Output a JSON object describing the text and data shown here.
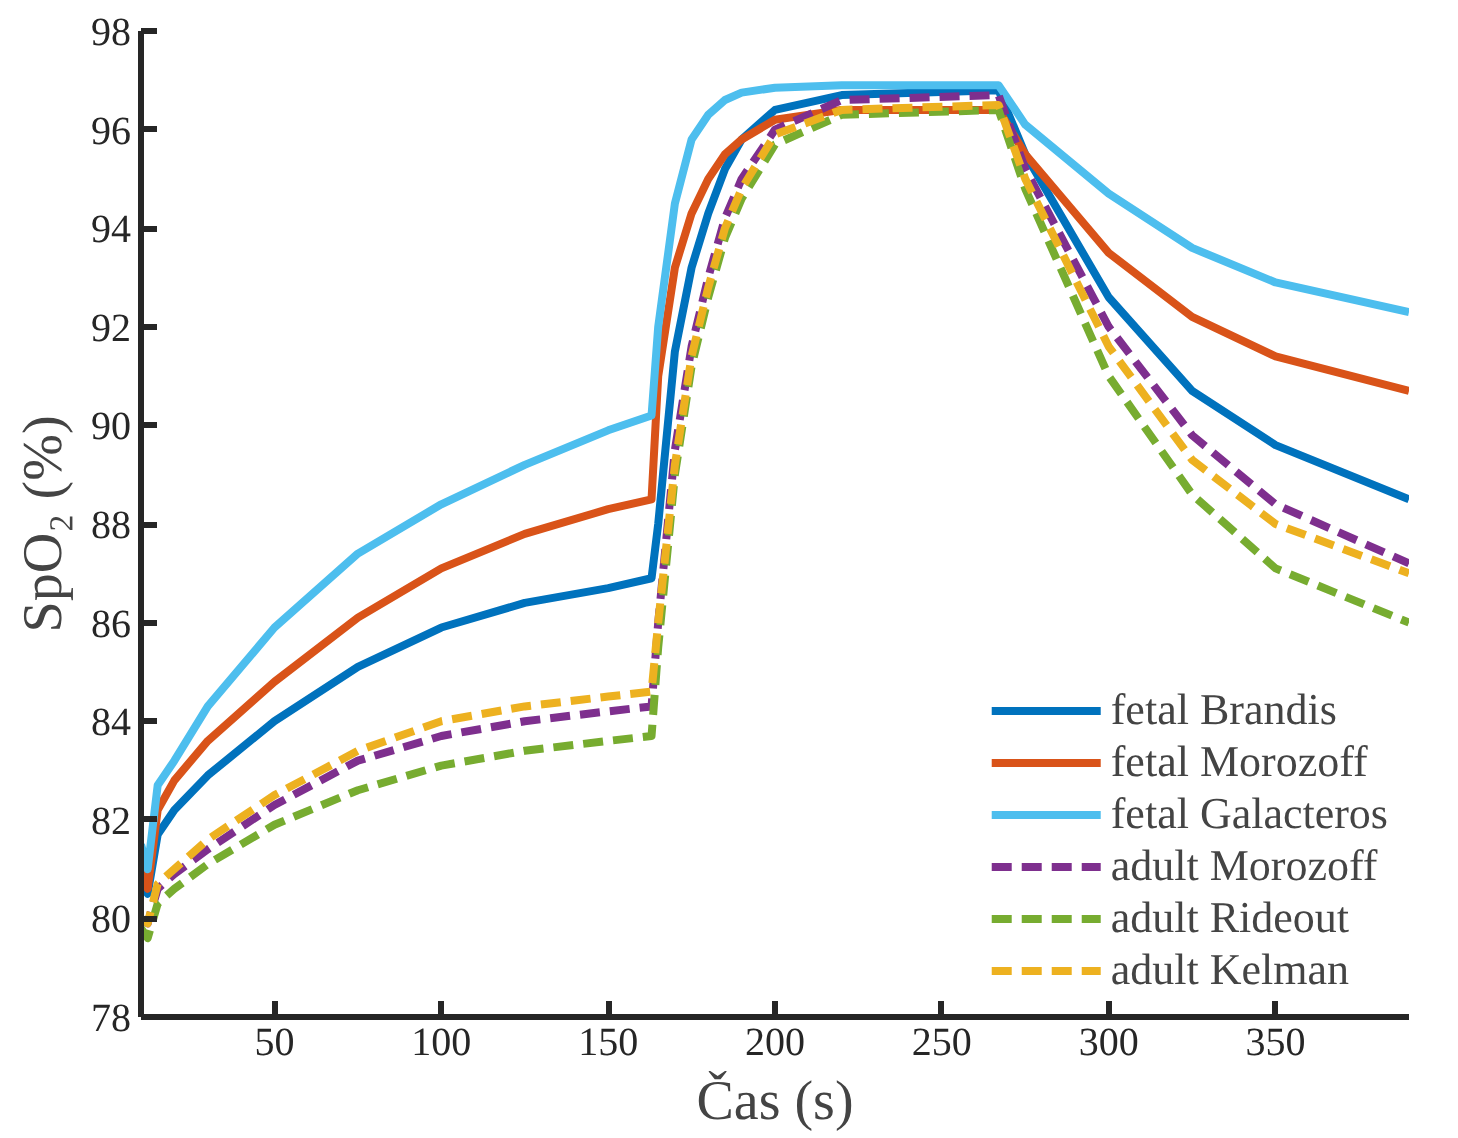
{
  "chart_data": {
    "type": "line",
    "xlabel": "Čas (s)",
    "ylabel": "SpO₂ (%)",
    "x": [
      10,
      12,
      15,
      20,
      30,
      50,
      75,
      100,
      125,
      150,
      163,
      165,
      170,
      175,
      180,
      185,
      190,
      200,
      220,
      267,
      275,
      300,
      325,
      350,
      390
    ],
    "xlim": [
      10,
      390
    ],
    "xticks": [
      50,
      100,
      150,
      200,
      250,
      300,
      350
    ],
    "ylim": [
      78,
      98
    ],
    "yticks": [
      78,
      80,
      82,
      84,
      86,
      88,
      90,
      92,
      94,
      96,
      98
    ],
    "grid": false,
    "legend": "bottom right",
    "marker": "none",
    "series": [
      {
        "name": "fetal Brandis",
        "color": "#0072bd",
        "line_style": "solid",
        "values": [
          80.7,
          80.5,
          81.7,
          82.2,
          82.9,
          84.0,
          85.1,
          85.9,
          86.4,
          86.7,
          86.9,
          88,
          91.5,
          93.2,
          94.3,
          95.2,
          95.8,
          96.4,
          96.7,
          96.8,
          95.5,
          92.6,
          90.7,
          89.6,
          88.5
        ]
      },
      {
        "name": "fetal Morozoff",
        "color": "#d95319",
        "line_style": "solid",
        "values": [
          81,
          80.6,
          82.2,
          82.8,
          83.6,
          84.8,
          86.1,
          87.1,
          87.8,
          88.3,
          88.5,
          91,
          93.2,
          94.3,
          95.0,
          95.5,
          95.8,
          96.2,
          96.4,
          96.4,
          95.5,
          93.5,
          92.2,
          91.4,
          90.7
        ]
      },
      {
        "name": "fetal Galacteros",
        "color": "#4dbeee",
        "line_style": "solid",
        "values": [
          81.5,
          81,
          82.7,
          83.2,
          84.3,
          85.9,
          87.4,
          88.4,
          89.2,
          89.9,
          90.2,
          92,
          94.5,
          95.8,
          96.3,
          96.6,
          96.75,
          96.85,
          96.9,
          96.9,
          96.1,
          94.7,
          93.6,
          92.9,
          92.3
        ]
      },
      {
        "name": "adult Morozoff",
        "color": "#7e2f8e",
        "line_style": "dashed",
        "values": [
          80,
          79.9,
          80.6,
          80.9,
          81.4,
          82.3,
          83.2,
          83.7,
          84.0,
          84.2,
          84.3,
          86,
          89.5,
          91.6,
          93,
          94.2,
          95,
          96,
          96.6,
          96.7,
          95.2,
          92.0,
          89.8,
          88.4,
          87.2
        ]
      },
      {
        "name": "adult Rideout",
        "color": "#77ac30",
        "line_style": "dashed",
        "values": [
          79.8,
          79.6,
          80.3,
          80.6,
          81.1,
          81.9,
          82.6,
          83.1,
          83.4,
          83.6,
          83.7,
          85.5,
          89,
          91.2,
          92.6,
          93.8,
          94.6,
          95.7,
          96.3,
          96.4,
          94.8,
          91.0,
          88.6,
          87.1,
          86.0
        ]
      },
      {
        "name": "adult Kelman",
        "color": "#edb120",
        "line_style": "dashed",
        "values": [
          80,
          79.9,
          80.7,
          81.0,
          81.6,
          82.5,
          83.4,
          84.0,
          84.3,
          84.5,
          84.6,
          86,
          89.2,
          91.4,
          92.8,
          94.0,
          94.8,
          95.9,
          96.4,
          96.5,
          95.0,
          91.6,
          89.3,
          88.0,
          87.0
        ]
      }
    ]
  }
}
